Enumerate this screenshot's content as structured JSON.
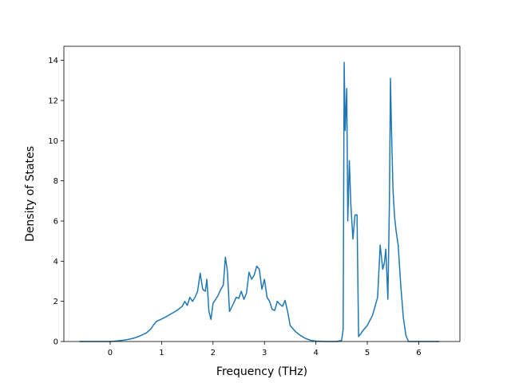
{
  "chart_data": {
    "type": "line",
    "title": "",
    "xlabel": "Frequency (THz)",
    "ylabel": "Density of States",
    "xlim": [
      -0.9,
      6.8
    ],
    "ylim": [
      0,
      14.7
    ],
    "xticks": [
      0,
      1,
      2,
      3,
      4,
      5,
      6
    ],
    "yticks": [
      0,
      2,
      4,
      6,
      8,
      10,
      12,
      14
    ],
    "grid": false,
    "legend": "none",
    "series": [
      {
        "color": "#1f77b4",
        "x": [
          -0.6,
          -0.4,
          -0.2,
          0.0,
          0.1,
          0.2,
          0.3,
          0.4,
          0.5,
          0.6,
          0.7,
          0.8,
          0.85,
          0.9,
          1.0,
          1.1,
          1.2,
          1.3,
          1.4,
          1.45,
          1.5,
          1.55,
          1.6,
          1.65,
          1.7,
          1.75,
          1.8,
          1.85,
          1.88,
          1.92,
          1.96,
          2.0,
          2.05,
          2.1,
          2.15,
          2.2,
          2.24,
          2.28,
          2.32,
          2.36,
          2.4,
          2.45,
          2.5,
          2.55,
          2.6,
          2.65,
          2.7,
          2.75,
          2.8,
          2.85,
          2.9,
          2.95,
          3.0,
          3.05,
          3.1,
          3.15,
          3.2,
          3.25,
          3.3,
          3.35,
          3.4,
          3.45,
          3.5,
          3.6,
          3.7,
          3.8,
          3.9,
          4.0,
          4.2,
          4.3,
          4.4,
          4.5,
          4.53,
          4.55,
          4.57,
          4.6,
          4.62,
          4.65,
          4.68,
          4.72,
          4.76,
          4.8,
          4.83,
          4.86,
          4.88,
          4.9,
          5.0,
          5.1,
          5.2,
          5.25,
          5.3,
          5.33,
          5.36,
          5.4,
          5.43,
          5.45,
          5.47,
          5.5,
          5.53,
          5.56,
          5.6,
          5.65,
          5.7,
          5.75,
          5.8,
          5.83,
          5.9,
          6.0,
          6.2,
          6.4
        ],
        "y": [
          0,
          0,
          0,
          0,
          0.02,
          0.05,
          0.08,
          0.13,
          0.2,
          0.3,
          0.42,
          0.65,
          0.85,
          1.0,
          1.12,
          1.25,
          1.4,
          1.55,
          1.75,
          2.0,
          1.8,
          2.2,
          2.0,
          2.2,
          2.5,
          3.4,
          2.6,
          2.5,
          3.1,
          1.5,
          1.1,
          1.9,
          2.1,
          2.3,
          2.6,
          2.8,
          4.2,
          3.5,
          1.5,
          1.7,
          1.9,
          2.2,
          2.15,
          2.5,
          2.1,
          2.4,
          3.45,
          3.1,
          3.3,
          3.75,
          3.6,
          2.6,
          3.1,
          2.2,
          2.0,
          1.6,
          1.55,
          2.0,
          1.85,
          1.75,
          2.05,
          1.5,
          0.8,
          0.5,
          0.3,
          0.15,
          0.06,
          0.02,
          0.0,
          0.0,
          0.0,
          0.05,
          0.6,
          13.9,
          10.5,
          12.6,
          6.0,
          9.0,
          6.8,
          5.1,
          6.3,
          6.3,
          0.25,
          0.35,
          0.4,
          0.5,
          0.8,
          1.3,
          2.2,
          4.8,
          3.6,
          3.9,
          4.6,
          2.1,
          7.0,
          13.1,
          10.5,
          7.5,
          6.2,
          5.5,
          4.8,
          2.8,
          1.2,
          0.3,
          0.0,
          0.0,
          0.0,
          0.0,
          0.0,
          0.0
        ]
      }
    ]
  }
}
